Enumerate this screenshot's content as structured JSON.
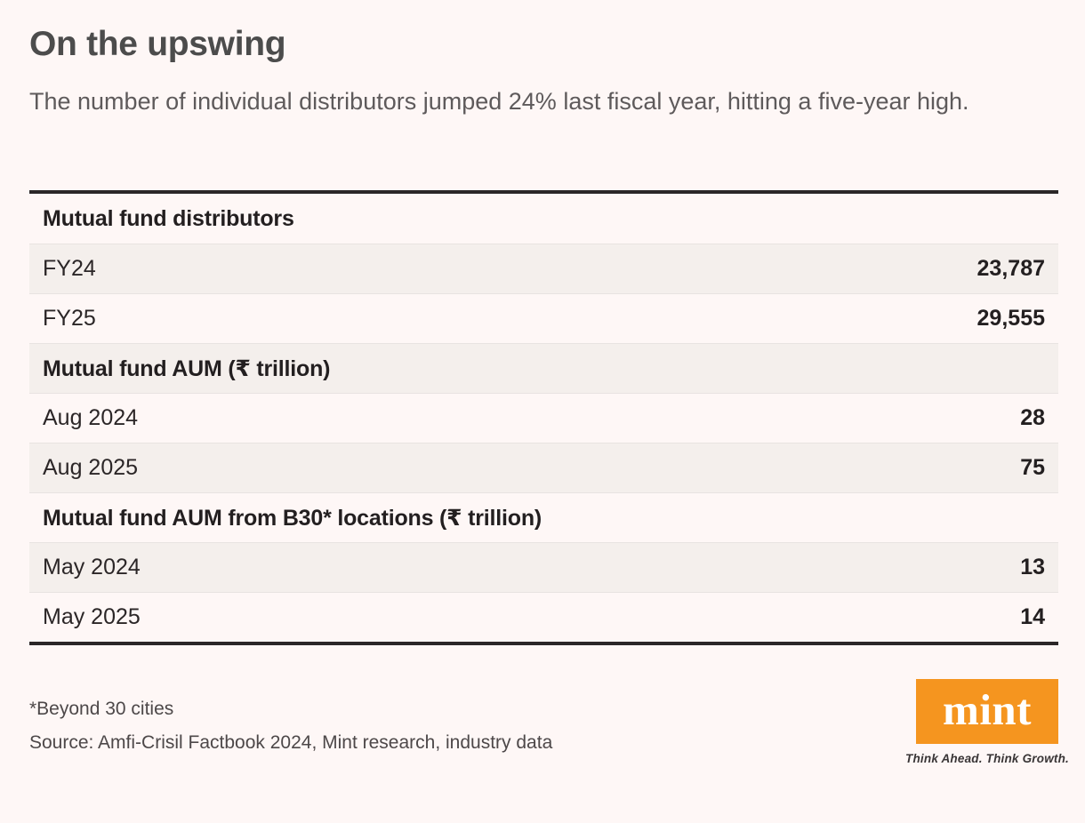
{
  "header": {
    "title": "On the upswing",
    "subtitle": "The number of individual distributors jumped 24% last fiscal year, hitting a five-year high."
  },
  "table": {
    "rows": [
      {
        "type": "section",
        "label": "Mutual fund distributors",
        "value": ""
      },
      {
        "type": "data",
        "label": "FY24",
        "value": "23,787"
      },
      {
        "type": "data",
        "label": "FY25",
        "value": "29,555"
      },
      {
        "type": "section",
        "label": "Mutual fund AUM (₹ trillion)",
        "value": ""
      },
      {
        "type": "data",
        "label": "Aug 2024",
        "value": "28"
      },
      {
        "type": "data",
        "label": "Aug 2025",
        "value": "75"
      },
      {
        "type": "section",
        "label": "Mutual fund AUM from B30* locations (₹ trillion)",
        "value": ""
      },
      {
        "type": "data",
        "label": "May 2024",
        "value": "13"
      },
      {
        "type": "data",
        "label": "May 2025",
        "value": "14"
      }
    ]
  },
  "footer": {
    "footnote": "*Beyond 30 cities",
    "source": "Source: Amfi-Crisil Factbook 2024, Mint research, industry data",
    "logo_text": "mint",
    "tagline": "Think Ahead. Think Growth."
  },
  "colors": {
    "background": "#FEF7F6",
    "shaded_row": "#F4EFEC",
    "table_border": "#2B2728",
    "row_divider": "#E8E3E1",
    "title_text": "#4C4C4C",
    "subtitle_text": "#5E5A5B",
    "table_text": "#231F20",
    "footnote_text": "#4D4849",
    "logo_orange": "#F5951F"
  },
  "chart_data": {
    "type": "table",
    "title": "On the upswing",
    "subtitle": "The number of individual distributors jumped 24% last fiscal year, hitting a five-year high.",
    "sections": [
      {
        "header": "Mutual fund distributors",
        "rows": [
          {
            "label": "FY24",
            "value": 23787
          },
          {
            "label": "FY25",
            "value": 29555
          }
        ]
      },
      {
        "header": "Mutual fund AUM (₹ trillion)",
        "rows": [
          {
            "label": "Aug 2024",
            "value": 28
          },
          {
            "label": "Aug 2025",
            "value": 75
          }
        ]
      },
      {
        "header": "Mutual fund AUM from B30* locations (₹ trillion)",
        "rows": [
          {
            "label": "May 2024",
            "value": 13
          },
          {
            "label": "May 2025",
            "value": 14
          }
        ]
      }
    ],
    "footnote": "*Beyond 30 cities",
    "source": "Source: Amfi-Crisil Factbook 2024, Mint research, industry data"
  }
}
